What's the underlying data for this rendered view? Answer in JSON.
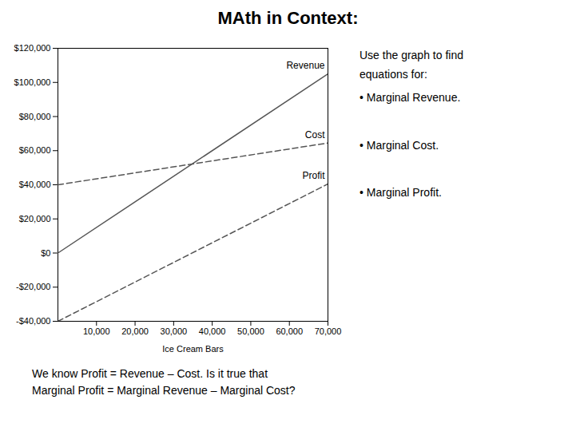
{
  "chart_data": {
    "type": "line",
    "title": "MAth in Context:",
    "xlabel": "Ice Cream Bars",
    "x": [
      0,
      70000
    ],
    "series": [
      {
        "name": "Revenue",
        "color": "#555555",
        "line_style": "solid",
        "values": [
          0,
          105000
        ]
      },
      {
        "name": "Cost",
        "color": "#555555",
        "line_style": "dashed",
        "values": [
          40000,
          64500
        ]
      },
      {
        "name": "Profit",
        "color": "#555555",
        "line_style": "dashed",
        "values": [
          -40000,
          40500
        ]
      }
    ],
    "xlim": [
      0,
      70000
    ],
    "xticks": [
      {
        "value": 10000,
        "label": "10,000"
      },
      {
        "value": 20000,
        "label": "20,000"
      },
      {
        "value": 30000,
        "label": "30,000"
      },
      {
        "value": 40000,
        "label": "40,000"
      },
      {
        "value": 50000,
        "label": "50,000"
      },
      {
        "value": 60000,
        "label": "60,000"
      },
      {
        "value": 70000,
        "label": "70,000"
      }
    ],
    "ylim": [
      -40000,
      120000
    ],
    "yticks": [
      {
        "value": -40000,
        "label": "-$40,000"
      },
      {
        "value": -20000,
        "label": "-$20,000"
      },
      {
        "value": 0,
        "label": "$0"
      },
      {
        "value": 20000,
        "label": "$20,000"
      },
      {
        "value": 40000,
        "label": "$40,000"
      },
      {
        "value": 60000,
        "label": "$60,000"
      },
      {
        "value": 80000,
        "label": "$80,000"
      },
      {
        "value": 100000,
        "label": "$100,000"
      },
      {
        "value": 120000,
        "label": "$120,000"
      }
    ],
    "grid": false,
    "annotations": [
      "Use the graph to find",
      "equations for:",
      "•  Marginal Revenue.",
      "•  Marginal Cost.",
      "•  Marginal Profit."
    ],
    "caption": [
      "We know Profit = Revenue – Cost.  Is it true that",
      "Marginal Profit = Marginal Revenue – Marginal Cost?"
    ]
  }
}
